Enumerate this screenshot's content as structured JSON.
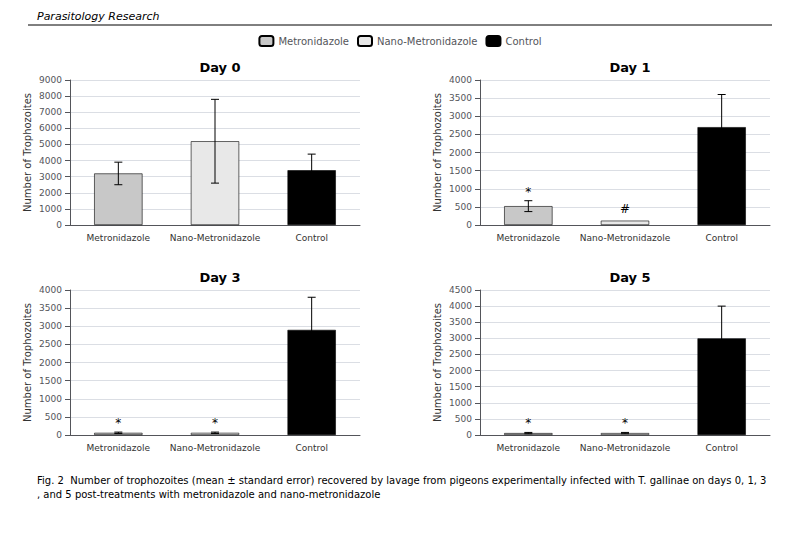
{
  "header": "Parasitology Research",
  "caption": "Fig. 2  Number of trophozoites (mean ± standard error) recovered by lavage from pigeons experimentally infected with T. gallinae on days 0, 1, 3, and 5 post-treatments with metronidazole and nano-metronidazole",
  "chart_data": [
    {
      "type": "bar",
      "title": "Day 0",
      "ylabel": "Number of Trophozoites",
      "categories": [
        "Metronidazole",
        "Nano-Metronidazole",
        "Control"
      ],
      "values": [
        3200,
        5200,
        3400
      ],
      "errors": [
        700,
        2600,
        1000
      ],
      "colors": [
        "#c8c8c8",
        "#e8e8e8",
        "#000000"
      ],
      "ylim": [
        0,
        9000
      ],
      "yticks": [
        0,
        1000,
        2000,
        3000,
        4000,
        5000,
        6000,
        7000,
        8000,
        9000
      ],
      "grid": true,
      "legend": "top"
    },
    {
      "type": "bar",
      "title": "Day 1",
      "ylabel": "Number of Trophozoites",
      "categories": [
        "Metronidazole",
        "Nano-Metronidazole",
        "Control"
      ],
      "values": [
        520,
        120,
        2700
      ],
      "errors": [
        150,
        0,
        900
      ],
      "colors": [
        "#c8c8c8",
        "#e8e8e8",
        "#000000"
      ],
      "ylim": [
        0,
        4000
      ],
      "yticks": [
        0,
        500,
        1000,
        1500,
        2000,
        2500,
        3000,
        3500,
        4000
      ],
      "annotations": [
        {
          "category": "Metronidazole",
          "y": 690,
          "text": "*"
        },
        {
          "category": "Nano-Metronidazole",
          "y": 225,
          "text": "#"
        }
      ],
      "grid": true,
      "legend": "top"
    },
    {
      "type": "bar",
      "title": "Day 3",
      "ylabel": "Number of Trophozoites",
      "categories": [
        "Metronidazole",
        "Nano-Metronidazole",
        "Control"
      ],
      "values": [
        60,
        60,
        2900
      ],
      "errors": [
        20,
        20,
        900
      ],
      "colors": [
        "#c8c8c8",
        "#e8e8e8",
        "#000000"
      ],
      "ylim": [
        0,
        4000
      ],
      "yticks": [
        0,
        500,
        1000,
        1500,
        2000,
        2500,
        3000,
        3500,
        4000
      ],
      "annotations": [
        {
          "category": "Metronidazole",
          "y": 130,
          "text": "*"
        },
        {
          "category": "Nano-Metronidazole",
          "y": 130,
          "text": "*"
        }
      ],
      "grid": true,
      "legend": "top"
    },
    {
      "type": "bar",
      "title": "Day 5",
      "ylabel": "Number of Trophozoites",
      "categories": [
        "Metronidazole",
        "Nano-Metronidazole",
        "Control"
      ],
      "values": [
        60,
        60,
        3000
      ],
      "errors": [
        20,
        20,
        1000
      ],
      "colors": [
        "#c8c8c8",
        "#e8e8e8",
        "#000000"
      ],
      "ylim": [
        0,
        4500
      ],
      "yticks": [
        0,
        500,
        1000,
        1500,
        2000,
        2500,
        3000,
        3500,
        4000,
        4500
      ],
      "annotations": [
        {
          "category": "Metronidazole",
          "y": 130,
          "text": "*"
        },
        {
          "category": "Nano-Metronidazole",
          "y": 130,
          "text": "*"
        }
      ],
      "grid": true,
      "legend": "top"
    }
  ]
}
